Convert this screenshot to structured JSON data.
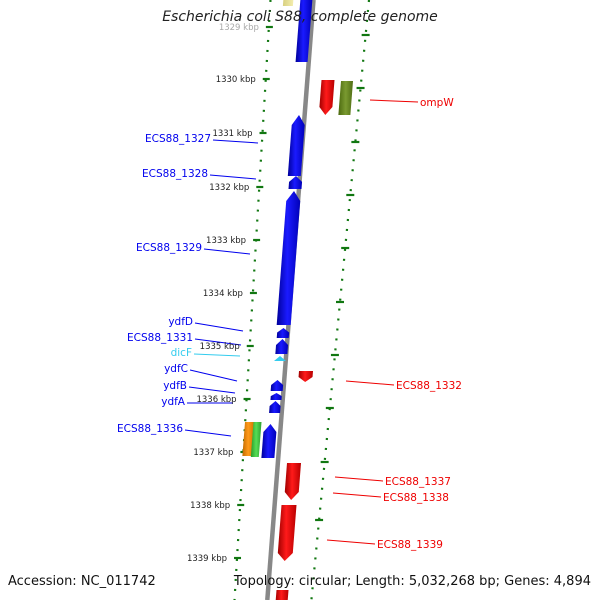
{
  "title": "Escherichia coli S88, complete genome",
  "footer": {
    "accession": "Accession: NC_011742",
    "summary": "Topology: circular; Length: 5,032,268 bp; Genes: 4,894"
  },
  "colors": {
    "plus_strand": "#0000ee",
    "minus_strand": "#ee0000",
    "rna": "#33ccee",
    "tick": "#117711",
    "backbone": "#888888"
  },
  "ruler": [
    {
      "label": "1329 kbp",
      "faded": true
    },
    {
      "label": "1330 kbp"
    },
    {
      "label": "1331 kbp"
    },
    {
      "label": "1332 kbp"
    },
    {
      "label": "1333 kbp"
    },
    {
      "label": "1334 kbp"
    },
    {
      "label": "1335 kbp"
    },
    {
      "label": "1336 kbp"
    },
    {
      "label": "1337 kbp"
    },
    {
      "label": "1338 kbp"
    },
    {
      "label": "1339 kbp"
    }
  ],
  "left_genes": [
    {
      "name": "ECS88_1327",
      "type": "gene"
    },
    {
      "name": "ECS88_1328",
      "type": "gene"
    },
    {
      "name": "ECS88_1329",
      "type": "gene"
    },
    {
      "name": "ydfD",
      "type": "gene"
    },
    {
      "name": "ECS88_1331",
      "type": "gene"
    },
    {
      "name": "dicF",
      "type": "rna"
    },
    {
      "name": "ydfC",
      "type": "gene"
    },
    {
      "name": "ydfB",
      "type": "gene"
    },
    {
      "name": "ydfA",
      "type": "gene"
    },
    {
      "name": "ECS88_1336",
      "type": "gene"
    }
  ],
  "right_genes": [
    {
      "name": "ompW"
    },
    {
      "name": "ECS88_1332"
    },
    {
      "name": "ECS88_1337"
    },
    {
      "name": "ECS88_1338"
    },
    {
      "name": "ECS88_1339"
    }
  ]
}
